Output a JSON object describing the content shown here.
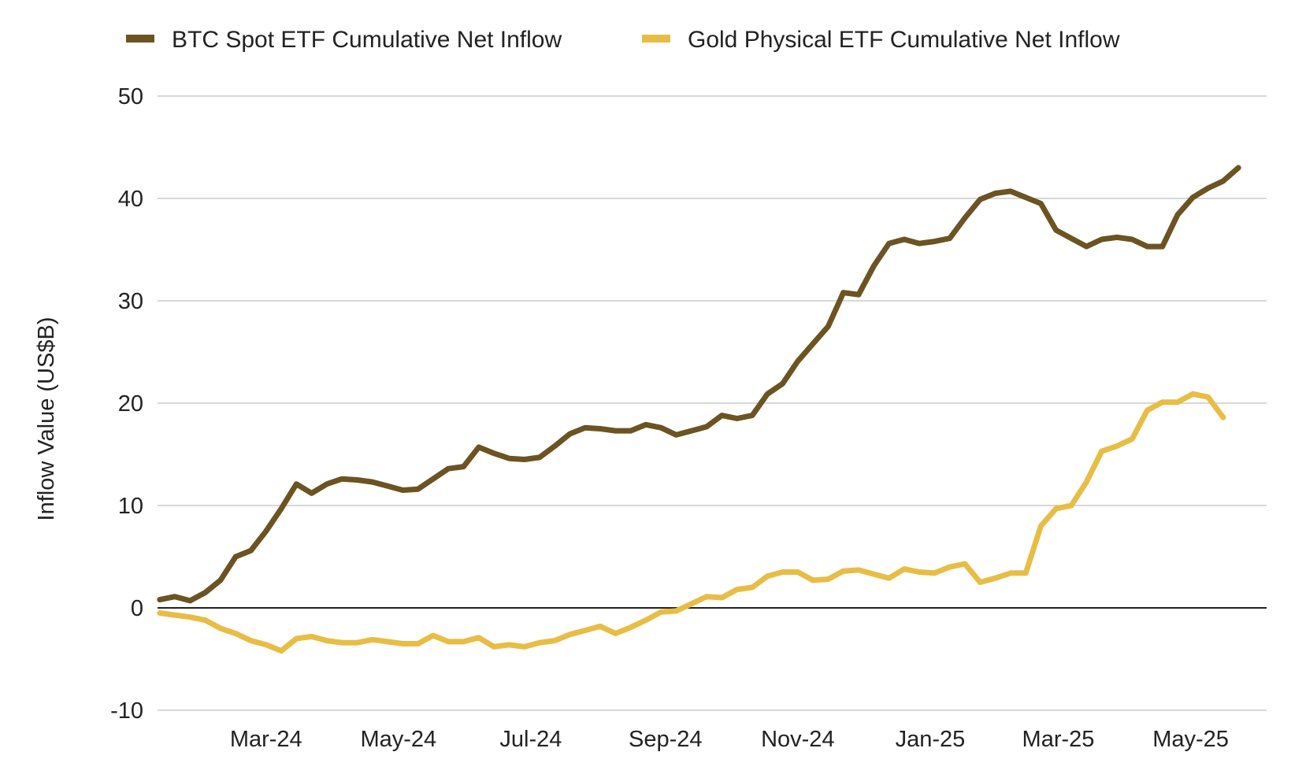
{
  "chart_data": {
    "type": "line",
    "title": "",
    "xlabel": "",
    "ylabel": "Inflow Value (US$B)",
    "ylim": [
      -10,
      50
    ],
    "yticks": [
      -10,
      0,
      10,
      20,
      30,
      40,
      50
    ],
    "xlim": [
      "2024-01-11",
      "2025-06-05"
    ],
    "xtick_labels": [
      {
        "date": "2024-03-01",
        "label": "Mar-24"
      },
      {
        "date": "2024-05-01",
        "label": "May-24"
      },
      {
        "date": "2024-07-01",
        "label": "Jul-24"
      },
      {
        "date": "2024-09-01",
        "label": "Sep-24"
      },
      {
        "date": "2024-11-01",
        "label": "Nov-24"
      },
      {
        "date": "2025-01-01",
        "label": "Jan-25"
      },
      {
        "date": "2025-03-01",
        "label": "Mar-25"
      },
      {
        "date": "2025-05-01",
        "label": "May-25"
      }
    ],
    "grid": true,
    "legend_position": "top",
    "series": [
      {
        "name": "BTC Spot ETF Cumulative Net Inflow",
        "color": "#6b5422",
        "points": [
          [
            "2024-01-12",
            0.8
          ],
          [
            "2024-01-19",
            1.1
          ],
          [
            "2024-01-26",
            0.7
          ],
          [
            "2024-02-02",
            1.5
          ],
          [
            "2024-02-09",
            2.7
          ],
          [
            "2024-02-16",
            5.0
          ],
          [
            "2024-02-23",
            5.6
          ],
          [
            "2024-03-01",
            7.5
          ],
          [
            "2024-03-08",
            9.7
          ],
          [
            "2024-03-15",
            12.1
          ],
          [
            "2024-03-22",
            11.2
          ],
          [
            "2024-03-29",
            12.1
          ],
          [
            "2024-04-05",
            12.6
          ],
          [
            "2024-04-12",
            12.5
          ],
          [
            "2024-04-19",
            12.3
          ],
          [
            "2024-04-26",
            11.9
          ],
          [
            "2024-05-03",
            11.5
          ],
          [
            "2024-05-10",
            11.6
          ],
          [
            "2024-05-17",
            12.6
          ],
          [
            "2024-05-24",
            13.6
          ],
          [
            "2024-05-31",
            13.8
          ],
          [
            "2024-06-07",
            15.7
          ],
          [
            "2024-06-14",
            15.1
          ],
          [
            "2024-06-21",
            14.6
          ],
          [
            "2024-06-28",
            14.5
          ],
          [
            "2024-07-05",
            14.7
          ],
          [
            "2024-07-12",
            15.8
          ],
          [
            "2024-07-19",
            17.0
          ],
          [
            "2024-07-26",
            17.6
          ],
          [
            "2024-08-02",
            17.5
          ],
          [
            "2024-08-09",
            17.3
          ],
          [
            "2024-08-16",
            17.3
          ],
          [
            "2024-08-23",
            17.9
          ],
          [
            "2024-08-30",
            17.6
          ],
          [
            "2024-09-06",
            16.9
          ],
          [
            "2024-09-13",
            17.3
          ],
          [
            "2024-09-20",
            17.7
          ],
          [
            "2024-09-27",
            18.8
          ],
          [
            "2024-10-04",
            18.5
          ],
          [
            "2024-10-11",
            18.8
          ],
          [
            "2024-10-18",
            20.9
          ],
          [
            "2024-10-25",
            21.9
          ],
          [
            "2024-11-01",
            24.1
          ],
          [
            "2024-11-08",
            25.8
          ],
          [
            "2024-11-15",
            27.5
          ],
          [
            "2024-11-22",
            30.8
          ],
          [
            "2024-11-29",
            30.6
          ],
          [
            "2024-12-06",
            33.4
          ],
          [
            "2024-12-13",
            35.6
          ],
          [
            "2024-12-20",
            36.0
          ],
          [
            "2024-12-27",
            35.6
          ],
          [
            "2025-01-03",
            35.8
          ],
          [
            "2025-01-10",
            36.1
          ],
          [
            "2025-01-17",
            38.1
          ],
          [
            "2025-01-24",
            39.9
          ],
          [
            "2025-01-31",
            40.5
          ],
          [
            "2025-02-07",
            40.7
          ],
          [
            "2025-02-14",
            40.1
          ],
          [
            "2025-02-21",
            39.5
          ],
          [
            "2025-02-28",
            36.9
          ],
          [
            "2025-03-07",
            36.1
          ],
          [
            "2025-03-14",
            35.3
          ],
          [
            "2025-03-21",
            36.0
          ],
          [
            "2025-03-28",
            36.2
          ],
          [
            "2025-04-04",
            36.0
          ],
          [
            "2025-04-11",
            35.3
          ],
          [
            "2025-04-18",
            35.3
          ],
          [
            "2025-04-25",
            38.4
          ],
          [
            "2025-05-02",
            40.1
          ],
          [
            "2025-05-09",
            41.0
          ],
          [
            "2025-05-16",
            41.7
          ],
          [
            "2025-05-23",
            43.0
          ]
        ]
      },
      {
        "name": "Gold Physical ETF Cumulative Net Inflow",
        "color": "#e8bd45",
        "points": [
          [
            "2024-01-12",
            -0.5
          ],
          [
            "2024-01-19",
            -0.7
          ],
          [
            "2024-01-26",
            -0.9
          ],
          [
            "2024-02-02",
            -1.2
          ],
          [
            "2024-02-09",
            -2.0
          ],
          [
            "2024-02-16",
            -2.5
          ],
          [
            "2024-02-23",
            -3.2
          ],
          [
            "2024-03-01",
            -3.6
          ],
          [
            "2024-03-08",
            -4.2
          ],
          [
            "2024-03-15",
            -3.0
          ],
          [
            "2024-03-22",
            -2.8
          ],
          [
            "2024-03-29",
            -3.2
          ],
          [
            "2024-04-05",
            -3.4
          ],
          [
            "2024-04-12",
            -3.4
          ],
          [
            "2024-04-19",
            -3.1
          ],
          [
            "2024-04-26",
            -3.3
          ],
          [
            "2024-05-03",
            -3.5
          ],
          [
            "2024-05-10",
            -3.5
          ],
          [
            "2024-05-17",
            -2.7
          ],
          [
            "2024-05-24",
            -3.3
          ],
          [
            "2024-05-31",
            -3.3
          ],
          [
            "2024-06-07",
            -2.9
          ],
          [
            "2024-06-14",
            -3.8
          ],
          [
            "2024-06-21",
            -3.6
          ],
          [
            "2024-06-28",
            -3.8
          ],
          [
            "2024-07-05",
            -3.4
          ],
          [
            "2024-07-12",
            -3.2
          ],
          [
            "2024-07-19",
            -2.6
          ],
          [
            "2024-07-26",
            -2.2
          ],
          [
            "2024-08-02",
            -1.8
          ],
          [
            "2024-08-09",
            -2.5
          ],
          [
            "2024-08-16",
            -1.9
          ],
          [
            "2024-08-23",
            -1.2
          ],
          [
            "2024-08-30",
            -0.4
          ],
          [
            "2024-09-06",
            -0.3
          ],
          [
            "2024-09-13",
            0.4
          ],
          [
            "2024-09-20",
            1.1
          ],
          [
            "2024-09-27",
            1.0
          ],
          [
            "2024-10-04",
            1.8
          ],
          [
            "2024-10-11",
            2.0
          ],
          [
            "2024-10-18",
            3.1
          ],
          [
            "2024-10-25",
            3.5
          ],
          [
            "2024-11-01",
            3.5
          ],
          [
            "2024-11-08",
            2.7
          ],
          [
            "2024-11-15",
            2.8
          ],
          [
            "2024-11-22",
            3.6
          ],
          [
            "2024-11-29",
            3.7
          ],
          [
            "2024-12-06",
            3.3
          ],
          [
            "2024-12-13",
            2.9
          ],
          [
            "2024-12-20",
            3.8
          ],
          [
            "2024-12-27",
            3.5
          ],
          [
            "2025-01-03",
            3.4
          ],
          [
            "2025-01-10",
            4.0
          ],
          [
            "2025-01-17",
            4.3
          ],
          [
            "2025-01-24",
            2.5
          ],
          [
            "2025-01-31",
            2.9
          ],
          [
            "2025-02-07",
            3.4
          ],
          [
            "2025-02-14",
            3.4
          ],
          [
            "2025-02-21",
            8.0
          ],
          [
            "2025-02-28",
            9.7
          ],
          [
            "2025-03-07",
            10.0
          ],
          [
            "2025-03-14",
            12.3
          ],
          [
            "2025-03-21",
            15.3
          ],
          [
            "2025-03-28",
            15.8
          ],
          [
            "2025-04-04",
            16.5
          ],
          [
            "2025-04-11",
            19.3
          ],
          [
            "2025-04-18",
            20.1
          ],
          [
            "2025-04-25",
            20.1
          ],
          [
            "2025-05-02",
            20.9
          ],
          [
            "2025-05-09",
            20.6
          ],
          [
            "2025-05-16",
            18.6
          ]
        ]
      }
    ]
  }
}
